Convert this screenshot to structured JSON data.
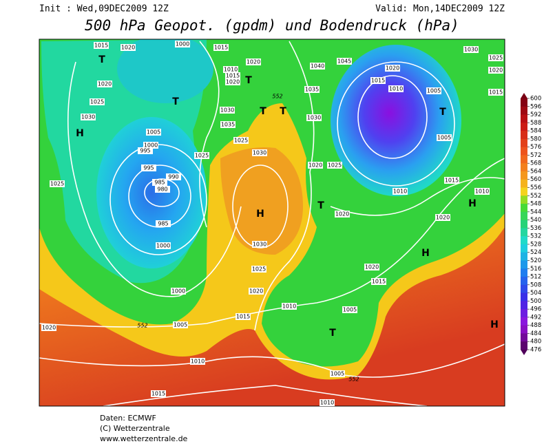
{
  "header": {
    "init": "Init : Wed,09DEC2009 12Z",
    "valid": "Valid: Mon,14DEC2009 12Z",
    "title": "500 hPa Geopot. (gpdm) und Bodendruck (hPa)"
  },
  "map": {
    "pressure_labels": [
      1015,
      1020,
      1000,
      1015,
      1020,
      1010,
      1015,
      1020,
      1040,
      1045,
      1030,
      1020,
      1015,
      1010,
      1005,
      1025,
      1020,
      1015,
      1020,
      1025,
      1030,
      1030,
      1035,
      1030,
      1035,
      1025,
      1005,
      1000,
      995,
      1025,
      995,
      990,
      985,
      980,
      1030,
      1020,
      1025,
      1005,
      1015,
      1010,
      1010,
      1025,
      985,
      1000,
      1020,
      1020,
      1030,
      1025,
      1020,
      1015,
      1020,
      1000,
      1010,
      1005,
      1015,
      1005,
      1020,
      1010,
      1005,
      1015,
      1010
    ],
    "contour_labels": [
      552,
      552,
      552
    ],
    "pressure_centers": [
      "T",
      "T",
      "H",
      "T",
      "T",
      "T",
      "H",
      "T",
      "T",
      "H",
      "H",
      "T",
      "H"
    ]
  },
  "colorbar": {
    "levels": [
      600,
      596,
      592,
      588,
      584,
      580,
      576,
      572,
      568,
      564,
      560,
      556,
      552,
      548,
      544,
      540,
      536,
      532,
      528,
      524,
      520,
      516,
      512,
      508,
      504,
      500,
      496,
      492,
      488,
      484,
      480,
      476
    ]
  },
  "footer": {
    "source": "Daten: ECMWF",
    "copyright": "(C) Wetterzentrale",
    "url": "www.wetterzentrale.de"
  }
}
